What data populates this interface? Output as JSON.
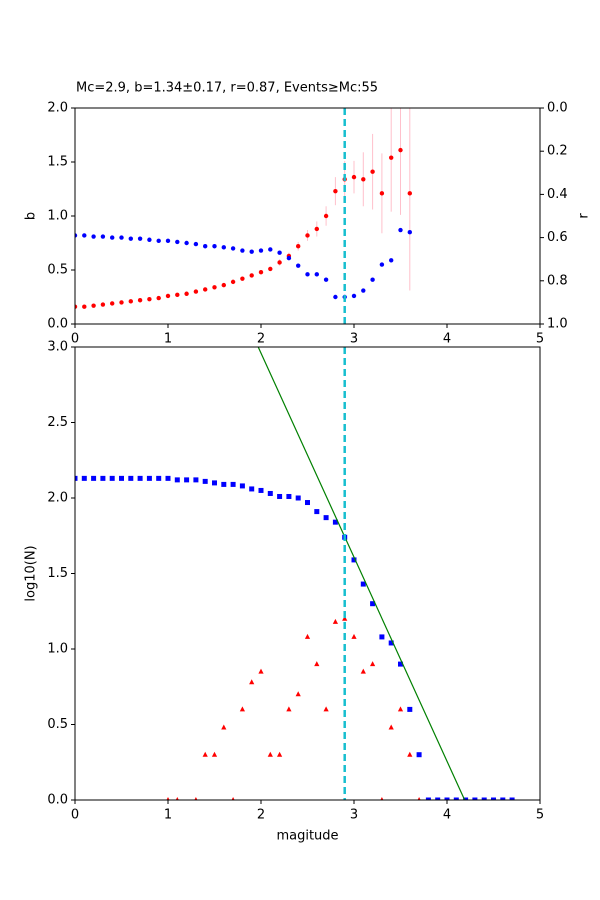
{
  "chart_data": [
    {
      "type": "scatter",
      "title": "Mc=2.9, b=1.34±0.17, r=0.87, Events≥Mc:55",
      "ylabel": "b",
      "y2label": "r",
      "x": [
        0,
        0.1,
        0.2,
        0.3,
        0.4,
        0.5,
        0.6,
        0.7,
        0.8,
        0.9,
        1.0,
        1.1,
        1.2,
        1.3,
        1.4,
        1.5,
        1.6,
        1.7,
        1.8,
        1.9,
        2.0,
        2.1,
        2.2,
        2.3,
        2.4,
        2.5,
        2.6,
        2.7,
        2.8,
        2.9,
        3.0,
        3.1,
        3.2,
        3.3,
        3.4,
        3.5,
        3.6
      ],
      "xlim": [
        0,
        5
      ],
      "xticks": [
        0,
        1,
        2,
        3,
        4,
        5
      ],
      "ylim": [
        0,
        2
      ],
      "yticks": [
        {
          "value": 0,
          "label": "0.0"
        },
        {
          "value": 0.5,
          "label": "0.5"
        },
        {
          "value": 1,
          "label": "1.0"
        },
        {
          "value": 1.5,
          "label": "1.5"
        },
        {
          "value": 2,
          "label": "2.0"
        }
      ],
      "y2lim": [
        1,
        0
      ],
      "y2ticks": [
        {
          "value": 0,
          "label": "0.0"
        },
        {
          "value": 0.2,
          "label": "0.2"
        },
        {
          "value": 0.4,
          "label": "0.4"
        },
        {
          "value": 0.6,
          "label": "0.6"
        },
        {
          "value": 0.8,
          "label": "0.8"
        },
        {
          "value": 1,
          "label": "1.0"
        }
      ],
      "vline": 2.9,
      "vline_color": "#17becf",
      "series": [
        {
          "color": "red",
          "marker": "circle",
          "error_color": "#ffc0cb",
          "values": [
            0.16,
            0.16,
            0.17,
            0.18,
            0.19,
            0.2,
            0.21,
            0.22,
            0.23,
            0.24,
            0.26,
            0.27,
            0.28,
            0.3,
            0.32,
            0.34,
            0.36,
            0.39,
            0.42,
            0.45,
            0.48,
            0.51,
            0.57,
            0.63,
            0.72,
            0.82,
            0.88,
            1.0,
            1.23,
            1.34,
            1.36,
            1.34,
            1.41,
            1.21,
            1.54,
            1.61,
            1.21
          ],
          "errors": [
            0.01,
            0.01,
            0.01,
            0.01,
            0.01,
            0.01,
            0.01,
            0.01,
            0.01,
            0.01,
            0.01,
            0.01,
            0.01,
            0.01,
            0.01,
            0.01,
            0.01,
            0.01,
            0.01,
            0.01,
            0.02,
            0.02,
            0.03,
            0.03,
            0.04,
            0.05,
            0.07,
            0.09,
            0.13,
            0.17,
            0.15,
            0.25,
            0.35,
            0.37,
            0.5,
            0.6,
            0.9
          ]
        },
        {
          "color": "blue",
          "marker": "circle",
          "axis": "y2",
          "values": [
            0.59,
            0.59,
            0.595,
            0.595,
            0.6,
            0.6,
            0.605,
            0.605,
            0.61,
            0.615,
            0.615,
            0.62,
            0.625,
            0.63,
            0.64,
            0.64,
            0.645,
            0.65,
            0.66,
            0.665,
            0.66,
            0.655,
            0.67,
            0.695,
            0.73,
            0.77,
            0.77,
            0.795,
            0.875,
            0.875,
            0.87,
            0.845,
            0.795,
            0.725,
            0.705,
            0.565,
            0.575
          ]
        }
      ]
    },
    {
      "type": "scatter",
      "xlabel": "magitude",
      "ylabel": "log10(N)",
      "xlim": [
        0,
        5
      ],
      "xticks": [
        0,
        1,
        2,
        3,
        4,
        5
      ],
      "ylim": [
        0,
        3
      ],
      "yticks": [
        {
          "value": 0,
          "label": "0.0"
        },
        {
          "value": 0.5,
          "label": "0.5"
        },
        {
          "value": 1,
          "label": "1.0"
        },
        {
          "value": 1.5,
          "label": "1.5"
        },
        {
          "value": 2,
          "label": "2.0"
        },
        {
          "value": 2.5,
          "label": "2.5"
        },
        {
          "value": 3,
          "label": "3.0"
        }
      ],
      "vline": 2.9,
      "vline_color": "#17becf",
      "fit": {
        "x": [
          1.97,
          4.19
        ],
        "values": [
          3.0,
          0.0
        ],
        "color": "green"
      },
      "series": [
        {
          "color": "blue",
          "marker": "square",
          "x": [
            0,
            0.1,
            0.2,
            0.3,
            0.4,
            0.5,
            0.6,
            0.7,
            0.8,
            0.9,
            1.0,
            1.1,
            1.2,
            1.3,
            1.4,
            1.5,
            1.6,
            1.7,
            1.8,
            1.9,
            2.0,
            2.1,
            2.2,
            2.3,
            2.4,
            2.5,
            2.6,
            2.7,
            2.8,
            2.9,
            3.0,
            3.1,
            3.2,
            3.3,
            3.4,
            3.5,
            3.6,
            3.7,
            3.8,
            3.9,
            4.0,
            4.1,
            4.2,
            4.3,
            4.4,
            4.5,
            4.6,
            4.7
          ],
          "values": [
            2.13,
            2.13,
            2.13,
            2.13,
            2.13,
            2.13,
            2.13,
            2.13,
            2.13,
            2.13,
            2.13,
            2.12,
            2.12,
            2.12,
            2.11,
            2.1,
            2.09,
            2.09,
            2.08,
            2.06,
            2.05,
            2.03,
            2.01,
            2.01,
            2.0,
            1.97,
            1.91,
            1.87,
            1.84,
            1.74,
            1.59,
            1.43,
            1.3,
            1.08,
            1.04,
            0.9,
            0.6,
            0.3,
            0,
            0,
            0,
            0,
            0,
            0,
            0,
            0,
            0,
            0
          ]
        },
        {
          "color": "red",
          "marker": "triangle",
          "x": [
            1.0,
            1.1,
            1.3,
            1.4,
            1.5,
            1.6,
            1.7,
            1.8,
            1.9,
            2.0,
            2.1,
            2.2,
            2.3,
            2.4,
            2.5,
            2.6,
            2.7,
            2.8,
            2.9,
            3.0,
            3.1,
            3.2,
            3.3,
            3.4,
            3.5,
            3.6,
            3.7
          ],
          "values": [
            0,
            0,
            0,
            0.3,
            0.3,
            0.48,
            0,
            0.6,
            0.78,
            0.85,
            0.3,
            0.3,
            0.6,
            0.7,
            1.08,
            0.9,
            0.6,
            1.18,
            1.2,
            1.08,
            0.85,
            0.9,
            0,
            0.48,
            0.6,
            0.3,
            0
          ]
        }
      ]
    }
  ]
}
